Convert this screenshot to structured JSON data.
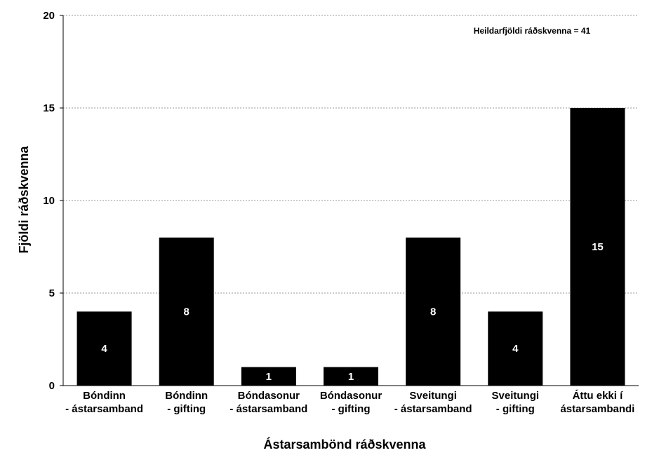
{
  "chart_data": {
    "type": "bar",
    "categories": [
      [
        "Bóndinn",
        "- ástarsamband"
      ],
      [
        "Bóndinn",
        "- gifting"
      ],
      [
        "Bóndasonur",
        "- ástarsamband"
      ],
      [
        "Bóndasonur",
        "- gifting"
      ],
      [
        "Sveitungi",
        "- ástarsamband"
      ],
      [
        "Sveitungi",
        "- gifting"
      ],
      [
        "Áttu ekki í",
        "ástarsambandi"
      ]
    ],
    "values": [
      4,
      8,
      1,
      1,
      8,
      4,
      15
    ],
    "data_labels": [
      "4",
      "8",
      "1",
      "1",
      "8",
      "4",
      "15"
    ],
    "xlabel": "Ástarsambönd ráðskvenna",
    "ylabel": "Fjöldi ráðskvenna",
    "ylim": [
      0,
      20
    ],
    "yticks": [
      0,
      5,
      10,
      15,
      20
    ],
    "annotation": "Heildarfjöldi ráðskvenna = 41",
    "grid": true,
    "bar_color": "#000000",
    "label_color": "#ffffff"
  }
}
